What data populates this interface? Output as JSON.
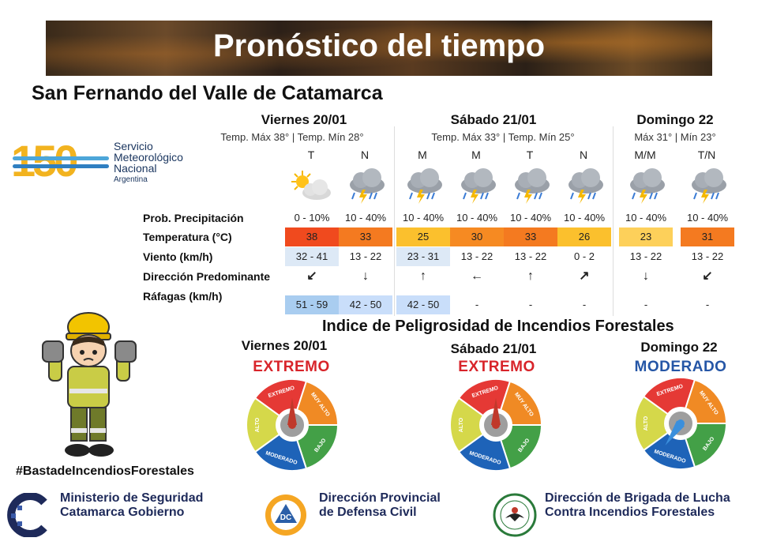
{
  "header": {
    "title": "Pronóstico del tiempo",
    "city": "San Fernando del Valle de Catamarca"
  },
  "smn_logo": {
    "number": "150",
    "line1": "Servicio",
    "line2": "Meteorológico",
    "line3": "Nacional",
    "country": "Argentina"
  },
  "days": [
    {
      "name": "Viernes 20/01",
      "temps": "Temp. Máx 38° | Temp. Mín 28°"
    },
    {
      "name": "Sábado 21/01",
      "temps": "Temp. Máx 33° | Temp. Mín 25°"
    },
    {
      "name": "Domingo 22",
      "temps": "Máx 31° | Mín 23°"
    }
  ],
  "row_labels": {
    "precip": "Prob. Precipitación",
    "temp": "Temperatura (°C)",
    "wind": "Viento (km/h)",
    "dir": "Dirección Predominante",
    "gusts": "Ráfagas (km/h)"
  },
  "periods": [
    {
      "label": "T",
      "icon": "partly-sunny-icon",
      "precip": "0 - 10%",
      "temp": "38",
      "temp_color": "#f04a1e",
      "wind": "32 - 41",
      "wind_bg": "#dde9f6",
      "dir": "↙",
      "gusts": "51 - 59",
      "gusts_bg": "#a9cdf0"
    },
    {
      "label": "N",
      "icon": "storm-icon",
      "precip": "10 - 40%",
      "temp": "33",
      "temp_color": "#f47a20",
      "wind": "13 - 22",
      "wind_bg": "",
      "dir": "↓",
      "gusts": "42 - 50",
      "gusts_bg": "#c9defa"
    },
    {
      "label": "M",
      "icon": "storm-icon",
      "precip": "10 - 40%",
      "temp": "25",
      "temp_color": "#fbc02d",
      "wind": "23 - 31",
      "wind_bg": "#dde9f6",
      "dir": "↑",
      "gusts": "42 - 50",
      "gusts_bg": "#c9defa"
    },
    {
      "label": "M",
      "icon": "storm-icon",
      "precip": "10 - 40%",
      "temp": "30",
      "temp_color": "#f68a22",
      "wind": "13 - 22",
      "wind_bg": "",
      "dir": "←",
      "gusts": "-",
      "gusts_bg": ""
    },
    {
      "label": "T",
      "icon": "storm-icon",
      "precip": "10 - 40%",
      "temp": "33",
      "temp_color": "#f47a20",
      "wind": "13 - 22",
      "wind_bg": "",
      "dir": "↑",
      "gusts": "-",
      "gusts_bg": ""
    },
    {
      "label": "N",
      "icon": "storm-icon",
      "precip": "10 - 40%",
      "temp": "26",
      "temp_color": "#fbc02d",
      "wind": "0 - 2",
      "wind_bg": "",
      "dir": "↗",
      "gusts": "-",
      "gusts_bg": ""
    },
    {
      "label": "M/M",
      "icon": "storm-icon",
      "precip": "10 - 40%",
      "temp": "23",
      "temp_color": "#fdd05a",
      "wind": "13 - 22",
      "wind_bg": "",
      "dir": "↓",
      "gusts": "-",
      "gusts_bg": ""
    },
    {
      "label": "T/N",
      "icon": "storm-icon",
      "precip": "10 - 40%",
      "temp": "31",
      "temp_color": "#f47a20",
      "wind": "13 - 22",
      "wind_bg": "",
      "dir": "↙",
      "gusts": "-",
      "gusts_bg": ""
    }
  ],
  "fire_index": {
    "title": "Indice de Peligrosidad de Incendios Forestales",
    "scale_labels": [
      "EXTREMO",
      "MUY ALTO",
      "BAJO",
      "MODERADO",
      "ALTO"
    ],
    "gauges": [
      {
        "day": "Viernes 20/01",
        "level": "EXTREMO",
        "level_color": "#d8242a",
        "needle_color": "#c0392b"
      },
      {
        "day": "Sábado 21/01",
        "level": "EXTREMO",
        "level_color": "#d8242a",
        "needle_color": "#c0392b"
      },
      {
        "day": "Domingo 22",
        "level": "MODERADO",
        "level_color": "#2556a6",
        "needle_color": "#3a8fdc"
      }
    ]
  },
  "hashtag": "#BastadeIncendiosForestales",
  "footer": {
    "ministry": {
      "line1": "Ministerio de Seguridad",
      "line2": "Catamarca Gobierno"
    },
    "civil": {
      "line1": "Dirección Provincial",
      "line2": "de Defensa Civil",
      "logo_text": "DC"
    },
    "brigade": {
      "line1": "Dirección de Brigada de Lucha",
      "line2": "Contra Incendios Forestales"
    }
  }
}
